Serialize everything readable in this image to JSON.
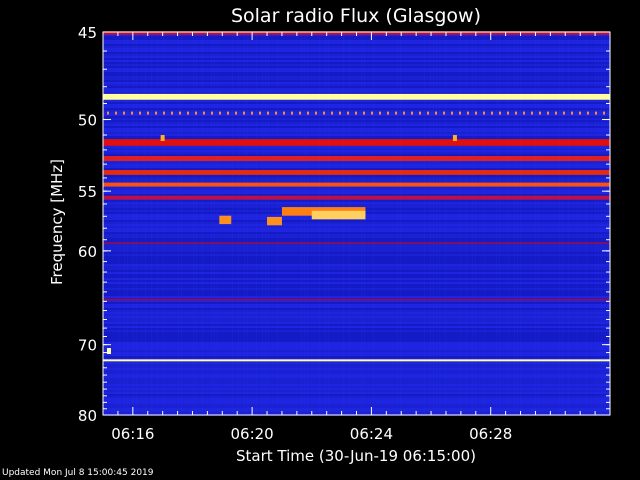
{
  "chart_data": {
    "type": "heatmap",
    "title": "Solar radio Flux (Glasgow)",
    "xlabel": "Start Time (30-Jun-19 06:15:00)",
    "ylabel_text": "Frequency ",
    "ylabel_unit": "[MHz]",
    "x_range_min": [
      15.0,
      32.0
    ],
    "y_range_mhz": [
      45,
      80
    ],
    "x_ticks": [
      {
        "min": 16,
        "label": "06:16"
      },
      {
        "min": 20,
        "label": "06:20"
      },
      {
        "min": 24,
        "label": "06:24"
      },
      {
        "min": 28,
        "label": "06:28"
      }
    ],
    "y_ticks": [
      {
        "mhz": 45,
        "label": "45"
      },
      {
        "mhz": 50,
        "label": "50"
      },
      {
        "mhz": 55,
        "label": "55"
      },
      {
        "mhz": 60,
        "label": "60"
      },
      {
        "mhz": 70,
        "label": "70"
      },
      {
        "mhz": 80,
        "label": "80"
      }
    ],
    "background_color": "#1a20d8",
    "bands": [
      {
        "mhz": 45.05,
        "width": 0.18,
        "color": "#c01030"
      },
      {
        "mhz": 48.6,
        "width": 0.35,
        "color": "#ffffa0"
      },
      {
        "mhz": 51.5,
        "width": 0.45,
        "color": "#e01010"
      },
      {
        "mhz": 52.6,
        "width": 0.35,
        "color": "#e02020"
      },
      {
        "mhz": 53.6,
        "width": 0.35,
        "color": "#e82a10"
      },
      {
        "mhz": 54.5,
        "width": 0.3,
        "color": "#ff5010"
      },
      {
        "mhz": 55.5,
        "width": 0.3,
        "color": "#c01040"
      },
      {
        "mhz": 59.3,
        "width": 0.18,
        "color": "#801060"
      },
      {
        "mhz": 64.8,
        "width": 0.2,
        "color": "#801060"
      },
      {
        "mhz": 72.0,
        "width": 0.25,
        "color": "#ffffb0"
      }
    ],
    "burst_segments": [
      {
        "x0": 18.9,
        "x1": 19.3,
        "mhz": 57.3,
        "color": "#ff9020"
      },
      {
        "x0": 20.5,
        "x1": 21.0,
        "mhz": 57.4,
        "color": "#ff9020"
      },
      {
        "x0": 21.0,
        "x1": 23.8,
        "mhz": 56.6,
        "color": "#ff8010"
      },
      {
        "x0": 22.0,
        "x1": 23.8,
        "mhz": 56.9,
        "color": "#ffd060"
      }
    ],
    "dots": [
      {
        "x": 17.0,
        "mhz": 51.2,
        "color": "#ffb020"
      },
      {
        "x": 26.8,
        "mhz": 51.2,
        "color": "#ffb020"
      },
      {
        "x": 15.2,
        "mhz": 70.8,
        "color": "#ffffa0"
      }
    ]
  },
  "footer": {
    "updated": "Updated Mon Jul  8 15:00:45 2019"
  }
}
